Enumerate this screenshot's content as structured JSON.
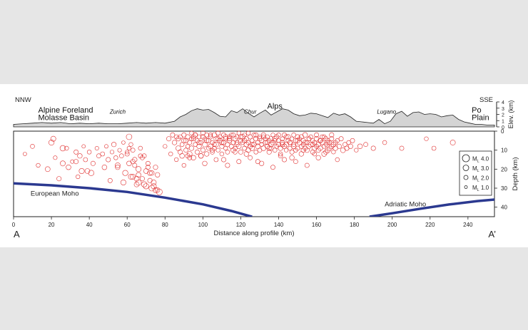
{
  "chart_data": {
    "type": "scatter",
    "title": "",
    "xlabel": "Distance along profile (km)",
    "ylabel": "Depth (km)",
    "elev_label": "Elev. (km)",
    "xlim": [
      0,
      254
    ],
    "ylim": [
      0,
      45
    ],
    "elev_lim": [
      0,
      4
    ],
    "x_ticks": [
      0,
      20,
      40,
      60,
      80,
      100,
      120,
      140,
      160,
      180,
      200,
      220,
      240
    ],
    "y_ticks": [
      0,
      10,
      20,
      30,
      40
    ],
    "elev_ticks": [
      0,
      1,
      2,
      3,
      4
    ],
    "grid": false,
    "profile_start": "A",
    "profile_end": "A’",
    "direction_left": "NNW",
    "direction_right": "SSE",
    "region_labels": [
      {
        "text": "Alpine Foreland",
        "x": 13,
        "elev": 2.3
      },
      {
        "text": "Molasse Basin",
        "x": 13,
        "elev": 1.1
      },
      {
        "text": "Zurich",
        "x": 55,
        "elev": 2.1
      },
      {
        "text": "Chur",
        "x": 125,
        "elev": 2.1
      },
      {
        "text": "Alps",
        "x": 138,
        "elev": 2.9
      },
      {
        "text": "Lugano",
        "x": 197,
        "elev": 2.1
      },
      {
        "text": "Po",
        "x": 242,
        "elev": 2.3
      },
      {
        "text": "Plain",
        "x": 242,
        "elev": 1.1
      }
    ],
    "region_label_italic": [
      false,
      false,
      true,
      true,
      false,
      true,
      false,
      false
    ],
    "topography": {
      "x": [
        0,
        5,
        10,
        15,
        20,
        25,
        30,
        35,
        40,
        45,
        50,
        55,
        60,
        65,
        70,
        75,
        80,
        85,
        88,
        91,
        94,
        97,
        100,
        103,
        106,
        109,
        112,
        115,
        118,
        121,
        124,
        127,
        130,
        133,
        136,
        139,
        142,
        145,
        148,
        151,
        154,
        157,
        160,
        163,
        166,
        169,
        172,
        175,
        178,
        181,
        184,
        187,
        190,
        193,
        196,
        199,
        202,
        205,
        208,
        211,
        214,
        217,
        220,
        223,
        226,
        229,
        232,
        235,
        238,
        241,
        244,
        247,
        250,
        254
      ],
      "elev": [
        0.4,
        0.5,
        0.6,
        0.7,
        0.6,
        0.7,
        0.5,
        0.6,
        0.5,
        0.6,
        0.5,
        0.5,
        0.6,
        0.7,
        0.6,
        0.7,
        0.6,
        0.9,
        1.6,
        2.0,
        2.6,
        2.9,
        2.7,
        2.8,
        2.3,
        1.7,
        1.6,
        2.6,
        2.3,
        2.9,
        2.2,
        1.6,
        2.2,
        2.7,
        1.9,
        2.4,
        2.9,
        2.7,
        2.1,
        1.8,
        1.9,
        2.2,
        2.1,
        1.8,
        1.5,
        2.2,
        1.9,
        2.1,
        1.6,
        0.9,
        0.8,
        0.7,
        0.6,
        1.2,
        0.5,
        0.9,
        2.1,
        2.5,
        1.7,
        2.3,
        2.4,
        2.0,
        2.1,
        2.0,
        1.6,
        1.8,
        1.9,
        1.2,
        0.8,
        0.6,
        0.4,
        0.4,
        0.3,
        0.3
      ]
    },
    "events": {
      "x": [
        6,
        10,
        13,
        18,
        20,
        22,
        24,
        26,
        28,
        29,
        31,
        33,
        34,
        35,
        36,
        37,
        38,
        40,
        41,
        42,
        44,
        45,
        48,
        49,
        50,
        51,
        52,
        53,
        54,
        55,
        56,
        57,
        58,
        59,
        60,
        61,
        61,
        62,
        63,
        63,
        64,
        65,
        66,
        67,
        68,
        69,
        70,
        71,
        72,
        73,
        74,
        75,
        76,
        77,
        60,
        62,
        64,
        66,
        68,
        70,
        72,
        74,
        76,
        61,
        63,
        65,
        67,
        69,
        71,
        73,
        75,
        21,
        26,
        33,
        39,
        47,
        55,
        58,
        66,
        80,
        82,
        83,
        84,
        85,
        86,
        87,
        88,
        88,
        89,
        89,
        90,
        90,
        91,
        91,
        92,
        92,
        93,
        93,
        94,
        94,
        95,
        95,
        96,
        96,
        97,
        97,
        98,
        98,
        99,
        99,
        100,
        100,
        101,
        101,
        102,
        102,
        103,
        103,
        104,
        104,
        105,
        105,
        106,
        106,
        107,
        107,
        108,
        108,
        109,
        109,
        110,
        110,
        111,
        111,
        112,
        112,
        113,
        113,
        114,
        114,
        115,
        115,
        116,
        116,
        117,
        117,
        118,
        118,
        119,
        119,
        120,
        120,
        121,
        121,
        122,
        122,
        123,
        123,
        124,
        124,
        125,
        125,
        126,
        126,
        127,
        127,
        128,
        128,
        129,
        129,
        130,
        130,
        131,
        131,
        132,
        132,
        133,
        133,
        134,
        134,
        135,
        135,
        136,
        136,
        137,
        137,
        138,
        138,
        139,
        139,
        140,
        140,
        141,
        141,
        142,
        142,
        143,
        143,
        144,
        144,
        145,
        145,
        146,
        146,
        147,
        147,
        148,
        148,
        149,
        149,
        150,
        150,
        151,
        151,
        152,
        152,
        153,
        153,
        154,
        154,
        155,
        155,
        156,
        156,
        157,
        157,
        158,
        158,
        159,
        159,
        160,
        160,
        161,
        161,
        162,
        162,
        163,
        163,
        164,
        164,
        165,
        165,
        166,
        166,
        167,
        167,
        168,
        168,
        169,
        169,
        170,
        170,
        171,
        172,
        173,
        174,
        175,
        176,
        177,
        178,
        179,
        181,
        183,
        186,
        190,
        196,
        205,
        218,
        222,
        232,
        86,
        90,
        94,
        98,
        102,
        106,
        110,
        114,
        118,
        122,
        126,
        130,
        134,
        138,
        142,
        146,
        150,
        154,
        158,
        162,
        166,
        87,
        93,
        99,
        105,
        111,
        117,
        123,
        129,
        135,
        141,
        147,
        153,
        159,
        165,
        171,
        92,
        96,
        100,
        104,
        108,
        112,
        116,
        120,
        124,
        128,
        132,
        136,
        140,
        144,
        148,
        152,
        156,
        160,
        164,
        168,
        95,
        101,
        107,
        113,
        119,
        125,
        131,
        137,
        143,
        149,
        155,
        161,
        167
      ],
      "depth": [
        12,
        8,
        18,
        20,
        6,
        14,
        25,
        17,
        9,
        19,
        16,
        11,
        24,
        13,
        21,
        8,
        15,
        11,
        22,
        17,
        9,
        13,
        19,
        8,
        15,
        26,
        11,
        7,
        14,
        18,
        10,
        13,
        6,
        22,
        12,
        3,
        17,
        7,
        24,
        10,
        15,
        28,
        20,
        9,
        25,
        13,
        29,
        17,
        22,
        30,
        27,
        19,
        31,
        32,
        11,
        24,
        18,
        27,
        14,
        21,
        26,
        29,
        23,
        9,
        16,
        25,
        13,
        28,
        19,
        22,
        31,
        4,
        9,
        16,
        21,
        12,
        19,
        27,
        23,
        8,
        4,
        12,
        2,
        6,
        15,
        9,
        3,
        11,
        7,
        13,
        2,
        18,
        5,
        10,
        3,
        8,
        12,
        6,
        1,
        9,
        4,
        14,
        7,
        2,
        11,
        5,
        8,
        3,
        13,
        6,
        1,
        10,
        4,
        7,
        2,
        12,
        9,
        5,
        3,
        8,
        6,
        11,
        2,
        9,
        4,
        7,
        1,
        10,
        5,
        3,
        8,
        12,
        6,
        2,
        9,
        4,
        11,
        7,
        3,
        5,
        8,
        2,
        10,
        6,
        4,
        9,
        7,
        3,
        1,
        8,
        5,
        11,
        6,
        3,
        9,
        2,
        7,
        4,
        10,
        6,
        8,
        3,
        5,
        9,
        2,
        7,
        11,
        4,
        6,
        8,
        3,
        10,
        5,
        7,
        2,
        9,
        6,
        4,
        8,
        3,
        11,
        5,
        7,
        9,
        2,
        6,
        10,
        4,
        8,
        3,
        7,
        5,
        9,
        12,
        6,
        4,
        8,
        2,
        10,
        7,
        5,
        3,
        9,
        6,
        11,
        4,
        8,
        7,
        5,
        10,
        3,
        9,
        6,
        4,
        8,
        12,
        7,
        5,
        2,
        9,
        6,
        10,
        4,
        8,
        3,
        7,
        11,
        5,
        9,
        6,
        4,
        8,
        10,
        7,
        5,
        9,
        3,
        6,
        8,
        12,
        4,
        7,
        10,
        5,
        9,
        6,
        8,
        4,
        11,
        7,
        6,
        9,
        5,
        8,
        4,
        10,
        7,
        9,
        6,
        8,
        5,
        10,
        8,
        7,
        9,
        6,
        9,
        4,
        9,
        6,
        3,
        5,
        4,
        6,
        5,
        7,
        6,
        4,
        6,
        5,
        7,
        4,
        6,
        5,
        7,
        6,
        5,
        6,
        7,
        5,
        6,
        4,
        14,
        13,
        10,
        15,
        11,
        12,
        16,
        9,
        13,
        14,
        10,
        12,
        11,
        15,
        13,
        2,
        3,
        2,
        4,
        3,
        2,
        3,
        1,
        2,
        3,
        4,
        2,
        3,
        2,
        3,
        4,
        2,
        3,
        2,
        3,
        17,
        15,
        18,
        16,
        14,
        17,
        19,
        15,
        16,
        18,
        14,
        16,
        17
      ],
      "magnitude": [
        1.5,
        2.0,
        1.8,
        2.5,
        2.8,
        1.7,
        2.2,
        2.6,
        1.9,
        2.4,
        1.6,
        2.1,
        1.8,
        2.3,
        2.7,
        1.5,
        2.0,
        1.9,
        2.9,
        2.2,
        1.7,
        2.0,
        2.4,
        1.6,
        2.2,
        2.1,
        1.8,
        2.3,
        1.9,
        2.6,
        1.7,
        2.0,
        1.5,
        2.8,
        2.1,
        3.0,
        2.4,
        1.8,
        2.6,
        2.0,
        2.3,
        2.5,
        2.7,
        1.9,
        2.2,
        2.0,
        2.8,
        2.1,
        2.4,
        3.0,
        2.6,
        2.2,
        2.3,
        3.2,
        1.8,
        2.6,
        2.1,
        3.0,
        2.0,
        2.4,
        2.2,
        2.7,
        2.3,
        1.8,
        2.2,
        2.5,
        1.9,
        2.8,
        2.1,
        2.3,
        2.6,
        2.6,
        2.9,
        2.2,
        2.5,
        2.0,
        2.3,
        2.7,
        2.4,
        1.8,
        2.2,
        1.9,
        2.1,
        2.3,
        1.8,
        2.5,
        2.0,
        2.2,
        1.9,
        2.4,
        2.1,
        1.8,
        2.3,
        2.0,
        2.2,
        1.9,
        2.5,
        2.1,
        1.8,
        2.3,
        2.0,
        2.4,
        1.9,
        2.2,
        2.1,
        1.8,
        2.3,
        2.0,
        2.4,
        1.9,
        2.2,
        2.1,
        1.8,
        2.5,
        2.0,
        2.3,
        1.9,
        2.2,
        2.1,
        2.4,
        1.8,
        2.0,
        2.3,
        1.9,
        2.2,
        2.5,
        2.1,
        1.8,
        2.3,
        2.0,
        2.2,
        1.9,
        2.4,
        2.1,
        1.8,
        2.3,
        2.0,
        2.2,
        1.9,
        2.5,
        2.1,
        1.8,
        2.3,
        2.0,
        2.4,
        1.9,
        2.2,
        2.1,
        1.8,
        2.3,
        2.0,
        2.2,
        1.9,
        2.4,
        2.1,
        1.8,
        2.5,
        2.0,
        2.3,
        1.9,
        2.2,
        2.1,
        1.8,
        2.4,
        2.0,
        2.3,
        1.9,
        2.2,
        2.1,
        2.5,
        1.8,
        2.0,
        2.3,
        1.9,
        2.2,
        2.4,
        2.1,
        1.8,
        2.3,
        2.0,
        2.2,
        1.9,
        2.5,
        2.1,
        1.8,
        2.3,
        2.0,
        2.4,
        1.9,
        2.2,
        2.1,
        1.8,
        2.3,
        2.0,
        2.2,
        1.9,
        2.4,
        2.1,
        1.8,
        2.5,
        2.0,
        2.3,
        1.9,
        2.2,
        2.1,
        1.8,
        2.4,
        2.0,
        2.3,
        1.9,
        2.2,
        2.1,
        2.5,
        1.8,
        2.0,
        2.3,
        1.9,
        2.2,
        2.4,
        2.1,
        1.8,
        2.3,
        2.0,
        2.2,
        1.9,
        2.5,
        2.1,
        1.8,
        2.3,
        2.0,
        2.4,
        1.9,
        2.2,
        2.1,
        1.8,
        2.3,
        2.0,
        2.2,
        1.9,
        2.4,
        2.1,
        1.8,
        2.5,
        2.0,
        2.3,
        1.9,
        2.2,
        2.1,
        1.8,
        2.4,
        2.0,
        2.3,
        1.9,
        2.2,
        2.1,
        2.5,
        2.0,
        2.2,
        1.9,
        2.3,
        2.1,
        1.8,
        2.4,
        2.0,
        2.2,
        1.9,
        2.1,
        1.8,
        2.0,
        2.6,
        2.0,
        2.2,
        1.9,
        2.1,
        2.3,
        2.0,
        2.2,
        2.1,
        1.9,
        2.3,
        2.0,
        2.2,
        2.1,
        1.9,
        2.4,
        2.0,
        2.2,
        2.1,
        1.9,
        2.3,
        2.0,
        2.2,
        2.1,
        2.3,
        1.9,
        2.2,
        2.0,
        2.4,
        2.1,
        2.2,
        2.0,
        2.3,
        2.1,
        1.9,
        2.2,
        1.9,
        2.1,
        2.0,
        2.2,
        1.9,
        2.1,
        2.3,
        2.0,
        2.2,
        1.9,
        2.1,
        2.0,
        2.2,
        1.9,
        2.1,
        2.0,
        2.2,
        1.9,
        2.1,
        2.0,
        2.2,
        2.1,
        2.3,
        2.0,
        2.2,
        2.1,
        2.0,
        2.3,
        2.1,
        2.2,
        2.0,
        2.1,
        2.3
      ]
    },
    "moho": [
      {
        "name": "European Moho",
        "x": [
          0,
          20,
          40,
          60,
          80,
          100,
          115,
          126
        ],
        "depth": [
          27.5,
          28.5,
          30.0,
          32.0,
          35.0,
          38.5,
          42.0,
          45.0
        ]
      },
      {
        "name": "Adriatic Moho",
        "x": [
          188,
          200,
          215,
          230,
          245,
          254
        ],
        "depth": [
          45.0,
          43.2,
          40.8,
          38.6,
          36.8,
          36.0
        ]
      }
    ],
    "legend": {
      "position": "right",
      "entries": [
        {
          "prefix": "M",
          "sub": "L",
          "value": "4.0",
          "magnitude": 4.0
        },
        {
          "prefix": "M",
          "sub": "L",
          "value": "3.0",
          "magnitude": 3.0
        },
        {
          "prefix": "M",
          "sub": "L",
          "value": "2.0",
          "magnitude": 2.0
        },
        {
          "prefix": "M",
          "sub": "L",
          "value": "1.0",
          "magnitude": 1.0
        }
      ]
    },
    "colors": {
      "event": "#e03030",
      "moho": "#2b3990",
      "topography_fill": "#d4d4d4",
      "topography_line": "#222222",
      "axis": "#222222"
    }
  }
}
